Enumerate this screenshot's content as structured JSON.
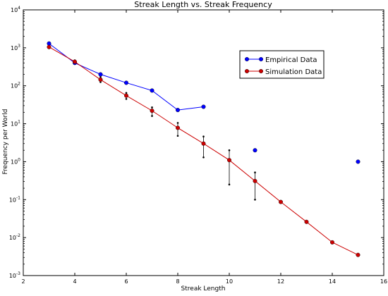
{
  "chart_data": {
    "type": "line",
    "title": "Streak Length vs. Streak Frequency",
    "xlabel": "Streak Length",
    "ylabel": "Frequency per World",
    "xlim": [
      2,
      16
    ],
    "ylim": [
      0.001,
      10000
    ],
    "yscale": "log",
    "grid": false,
    "legend_position": "upper-right",
    "x_ticks": [
      {
        "value": 2,
        "label": "2"
      },
      {
        "value": 4,
        "label": "4"
      },
      {
        "value": 6,
        "label": "6"
      },
      {
        "value": 8,
        "label": "8"
      },
      {
        "value": 10,
        "label": "10"
      },
      {
        "value": 12,
        "label": "12"
      },
      {
        "value": 14,
        "label": "14"
      },
      {
        "value": 16,
        "label": "16"
      }
    ],
    "y_ticks": [
      {
        "value": 0.001,
        "base": "10",
        "exp": "-3"
      },
      {
        "value": 0.01,
        "base": "10",
        "exp": "-2"
      },
      {
        "value": 0.1,
        "base": "10",
        "exp": "-1"
      },
      {
        "value": 1,
        "base": "10",
        "exp": "0"
      },
      {
        "value": 10,
        "base": "10",
        "exp": "1"
      },
      {
        "value": 100,
        "base": "10",
        "exp": "2"
      },
      {
        "value": 1000,
        "base": "10",
        "exp": "3"
      },
      {
        "value": 10000,
        "base": "10",
        "exp": "4"
      }
    ],
    "series": [
      {
        "name": "Empirical Data",
        "color": "#0000ff",
        "points": [
          {
            "x": 3,
            "y": 1300
          },
          {
            "x": 4,
            "y": 400
          },
          {
            "x": 5,
            "y": 200
          },
          {
            "x": 6,
            "y": 120
          },
          {
            "x": 7,
            "y": 75
          },
          {
            "x": 8,
            "y": 23
          },
          {
            "x": 9,
            "y": 28
          }
        ],
        "isolated_points": [
          {
            "x": 11,
            "y": 2
          },
          {
            "x": 15,
            "y": 1
          }
        ]
      },
      {
        "name": "Simulation Data",
        "color": "#cc0000",
        "points": [
          {
            "x": 3,
            "y": 1050,
            "lo": 980,
            "hi": 1150
          },
          {
            "x": 4,
            "y": 430,
            "lo": 400,
            "hi": 470
          },
          {
            "x": 5,
            "y": 145,
            "lo": 125,
            "hi": 170
          },
          {
            "x": 6,
            "y": 55,
            "lo": 45,
            "hi": 65
          },
          {
            "x": 7,
            "y": 22,
            "lo": 16,
            "hi": 27
          },
          {
            "x": 8,
            "y": 7.8,
            "lo": 4.8,
            "hi": 10.5
          },
          {
            "x": 9,
            "y": 3,
            "lo": 1.3,
            "hi": 4.6
          },
          {
            "x": 10,
            "y": 1.1,
            "lo": 0.25,
            "hi": 2
          },
          {
            "x": 11,
            "y": 0.31,
            "lo": 0.1,
            "hi": 0.52
          },
          {
            "x": 12,
            "y": 0.087
          },
          {
            "x": 13,
            "y": 0.026
          },
          {
            "x": 14,
            "y": 0.0075
          },
          {
            "x": 15,
            "y": 0.0035
          }
        ]
      }
    ]
  }
}
